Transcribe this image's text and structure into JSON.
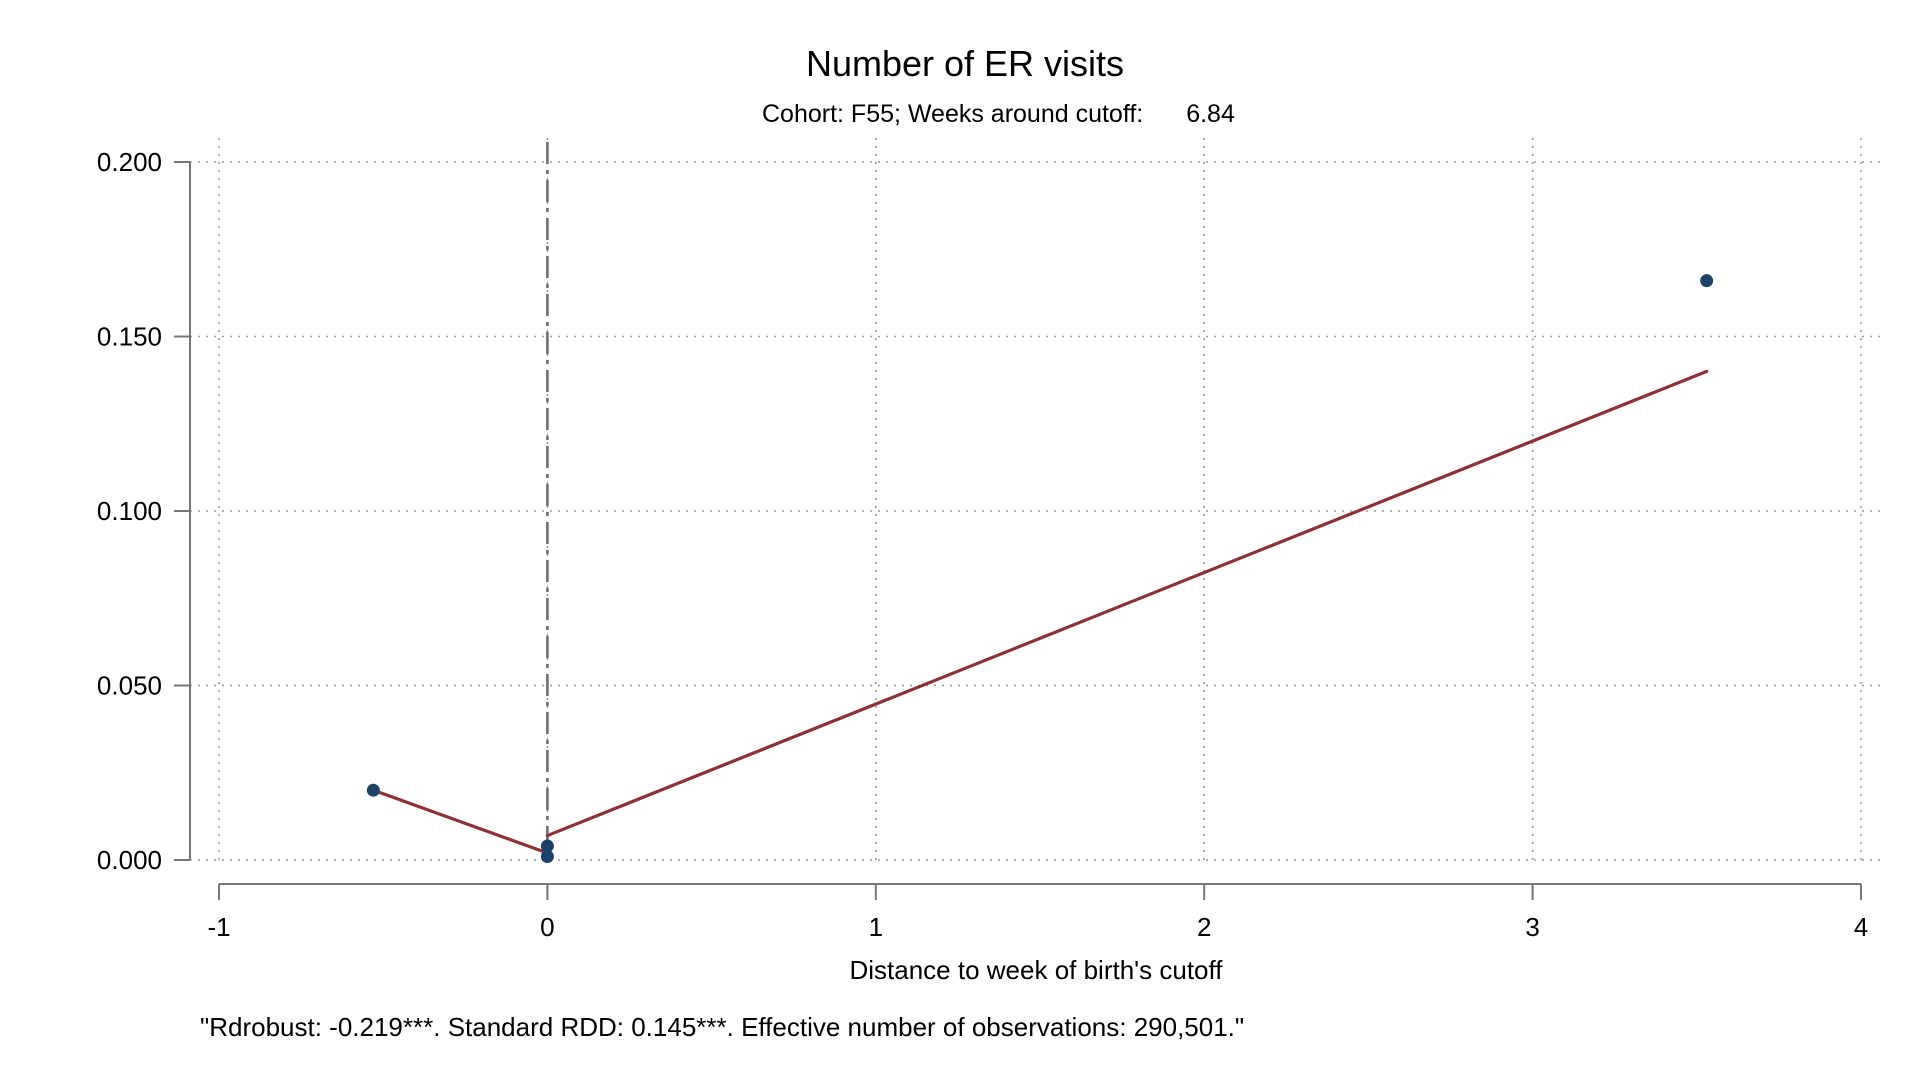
{
  "chart_data": {
    "type": "scatter",
    "title": "Number of ER visits",
    "subtitle_label": "Cohort: F55; Weeks around cutoff:",
    "subtitle_value": "6.84",
    "xlabel": "Distance to week of birth's cutoff",
    "ylabel": "",
    "note": "\"Rdrobust: -0.219***. Standard RDD: 0.145***. Effective number of observations: 290,501.\"",
    "xlim": [
      -1,
      4
    ],
    "ylim": [
      0,
      0.2
    ],
    "x_ticks": [
      -1,
      0,
      1,
      2,
      3,
      4
    ],
    "x_tick_labels": [
      "-1",
      "0",
      "1",
      "2",
      "3",
      "4"
    ],
    "y_ticks": [
      0,
      0.05,
      0.1,
      0.15,
      0.2
    ],
    "y_tick_labels": [
      "0.000",
      "0.050",
      "0.100",
      "0.150",
      "0.200"
    ],
    "grid": true,
    "cutoff_x": 0,
    "points": [
      {
        "x": -0.53,
        "y": 0.02
      },
      {
        "x": 0.0,
        "y": 0.004
      },
      {
        "x": 0.0,
        "y": 0.001
      },
      {
        "x": 3.53,
        "y": 0.166
      }
    ],
    "fit_lines": [
      {
        "segment": "left",
        "x": [
          -0.53,
          0.0
        ],
        "y": [
          0.02,
          0.002
        ]
      },
      {
        "segment": "right",
        "x": [
          0.0,
          3.53
        ],
        "y": [
          0.007,
          0.14
        ]
      }
    ],
    "colors": {
      "points": "#1b4268",
      "fit_line": "#8e3035",
      "cutoff_line": "#6e6e6e",
      "grid": "#9a9a9a",
      "axis": "#777777"
    }
  }
}
